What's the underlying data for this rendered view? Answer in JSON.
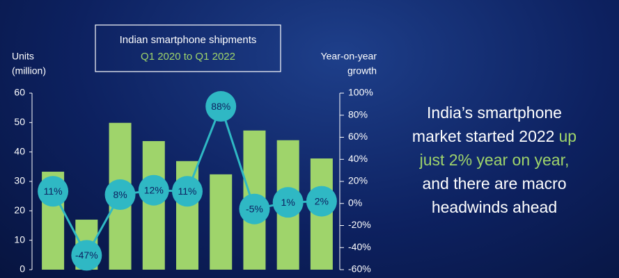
{
  "chart_data": {
    "type": "combo",
    "title": "Indian smartphone shipments",
    "subtitle": "Q1 2020 to Q1 2022",
    "ylabel": [
      "Units",
      "(million)"
    ],
    "y2label": [
      "Year-on-year",
      "growth"
    ],
    "categories": [
      null,
      null,
      null,
      null,
      null,
      null,
      null,
      null,
      null
    ],
    "series": [
      {
        "type": "bar",
        "color": "#9fd46b",
        "values": [
          33.3,
          17,
          49.9,
          43.7,
          36.9,
          32.4,
          47.3,
          44,
          37.8
        ]
      },
      {
        "type": "line",
        "axis": "y2",
        "color": "#2fb8c4",
        "values": [
          11,
          -47,
          8,
          12,
          11,
          88,
          -5,
          1,
          2
        ],
        "value_labels": [
          "11%",
          "-47%",
          "8%",
          "12%",
          "11%",
          "88%",
          "-5%",
          "1%",
          "2%"
        ]
      }
    ],
    "ylim": [
      0,
      60
    ],
    "yticks": [
      0,
      10,
      20,
      30,
      40,
      50,
      60
    ],
    "y2lim": [
      -60,
      100
    ],
    "y2ticks": [
      {
        "value": -60,
        "label": "-60%"
      },
      {
        "value": -40,
        "label": "-40%"
      },
      {
        "value": -20,
        "label": "-20%"
      },
      {
        "value": 0,
        "label": "0%"
      },
      {
        "value": 20,
        "label": "20%"
      },
      {
        "value": 40,
        "label": "40%"
      },
      {
        "value": 60,
        "label": "60%"
      },
      {
        "value": 80,
        "label": "80%"
      },
      {
        "value": 100,
        "label": "100%"
      }
    ],
    "annotation": [
      [
        {
          "text": "India’s smartphone"
        }
      ],
      [
        {
          "text": "market started 2022"
        },
        {
          "text": "up",
          "color": "#9fd46b"
        }
      ],
      [
        {
          "text": "just 2% year on year,",
          "color": "#9fd46b"
        }
      ],
      [
        {
          "text": "and there are macro"
        }
      ],
      [
        {
          "text": "headwinds ahead"
        }
      ]
    ]
  }
}
